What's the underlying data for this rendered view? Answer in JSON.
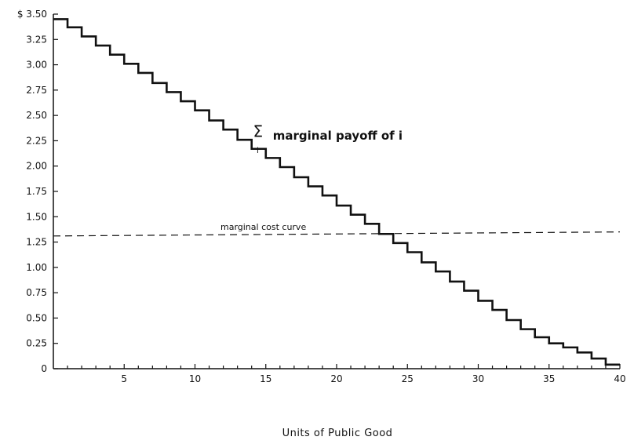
{
  "chart_data": {
    "type": "line",
    "xlabel": "Units of Public Good",
    "ylabel": "",
    "xlim": [
      0,
      40
    ],
    "ylim": [
      0,
      3.5
    ],
    "x_ticks": [
      {
        "value": 5,
        "label": "5"
      },
      {
        "value": 10,
        "label": "10"
      },
      {
        "value": 15,
        "label": "15"
      },
      {
        "value": 20,
        "label": "20"
      },
      {
        "value": 25,
        "label": "25"
      },
      {
        "value": 30,
        "label": "30"
      },
      {
        "value": 35,
        "label": "35"
      },
      {
        "value": 40,
        "label": "40"
      }
    ],
    "y_ticks": [
      {
        "value": 3.5,
        "label": "$ 3.50"
      },
      {
        "value": 3.25,
        "label": "3.25"
      },
      {
        "value": 3.0,
        "label": "3.00"
      },
      {
        "value": 2.75,
        "label": "2.75"
      },
      {
        "value": 2.5,
        "label": "2.50"
      },
      {
        "value": 2.25,
        "label": "2.25"
      },
      {
        "value": 2.0,
        "label": "2.00"
      },
      {
        "value": 1.75,
        "label": "1.75"
      },
      {
        "value": 1.5,
        "label": "1.50"
      },
      {
        "value": 1.25,
        "label": "1.25"
      },
      {
        "value": 1.0,
        "label": "1.00"
      },
      {
        "value": 0.75,
        "label": "0.75"
      },
      {
        "value": 0.5,
        "label": "0.50"
      },
      {
        "value": 0.25,
        "label": "0.25"
      },
      {
        "value": 0,
        "label": "0"
      }
    ],
    "grid": false,
    "series": [
      {
        "name": "marginal payoff of i",
        "style": "step",
        "color": "#111111",
        "values": [
          3.45,
          3.37,
          3.28,
          3.19,
          3.1,
          3.01,
          2.92,
          2.82,
          2.73,
          2.64,
          2.55,
          2.45,
          2.36,
          2.26,
          2.17,
          2.08,
          1.99,
          1.89,
          1.8,
          1.71,
          1.61,
          1.52,
          1.43,
          1.33,
          1.24,
          1.15,
          1.05,
          0.96,
          0.86,
          0.77,
          0.67,
          0.58,
          0.48,
          0.39,
          0.31,
          0.25,
          0.21,
          0.16,
          0.1,
          0.04
        ]
      },
      {
        "name": "marginal cost curve",
        "style": "dashed",
        "color": "#111111",
        "x": [
          0,
          40
        ],
        "y": [
          1.31,
          1.35
        ]
      }
    ],
    "annotations": [
      {
        "id": "sum-symbol",
        "text": "Σ",
        "x": 14.1,
        "y": 2.29
      },
      {
        "id": "sum-index",
        "text": "i",
        "x": 14.35,
        "y": 2.13
      },
      {
        "id": "payoff-label",
        "text": "marginal payoff of i",
        "x": 15.5,
        "y": 2.26
      },
      {
        "id": "cost-label",
        "text": "marginal cost curve",
        "x": 11.8,
        "y": 1.37
      }
    ]
  }
}
